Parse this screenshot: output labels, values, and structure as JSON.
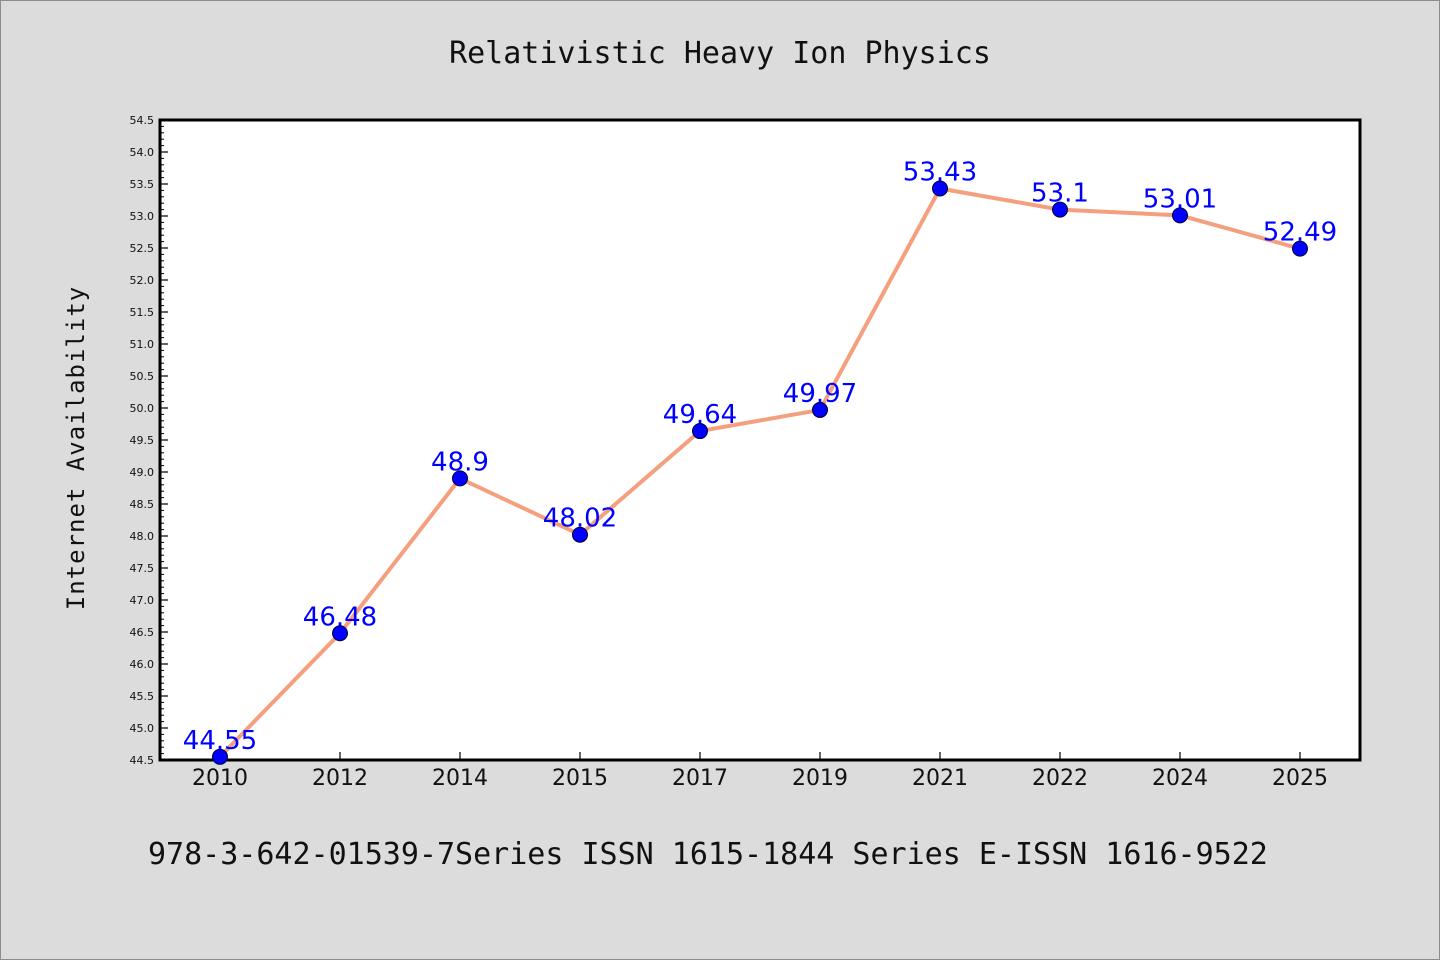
{
  "chart_data": {
    "type": "line",
    "title": "Relativistic Heavy Ion Physics",
    "xlabel": "",
    "ylabel": "Internet Availability",
    "categories": [
      "2010",
      "2012",
      "2014",
      "2015",
      "2017",
      "2019",
      "2021",
      "2022",
      "2024",
      "2025"
    ],
    "series": [
      {
        "values": [
          44.55,
          46.48,
          48.9,
          48.02,
          49.64,
          49.97,
          53.43,
          53.1,
          53.01,
          52.49
        ]
      }
    ],
    "data_labels": [
      "44.55",
      "46.48",
      "48.9",
      "48.02",
      "49.64",
      "49.97",
      "53.43",
      "53.1",
      "53.01",
      "52.49"
    ],
    "ylim": [
      44.5,
      54.5
    ],
    "yticks": [
      "44.5",
      "45.0",
      "45.5",
      "46.0",
      "46.5",
      "47.0",
      "47.5",
      "48.0",
      "48.5",
      "49.0",
      "49.5",
      "50.0",
      "50.5",
      "51.0",
      "51.5",
      "52.0",
      "52.5",
      "53.0",
      "53.5",
      "54.0",
      "54.5"
    ],
    "grid": false,
    "legend": "none",
    "colors": {
      "line": "#f4a07e",
      "marker": "#0000ff",
      "label": "#0000ff",
      "background": "#dcdcdc",
      "plot_area": "#ffffff"
    }
  },
  "footer": "978-3-642-01539-7Series ISSN 1615-1844 Series E-ISSN 1616-9522"
}
